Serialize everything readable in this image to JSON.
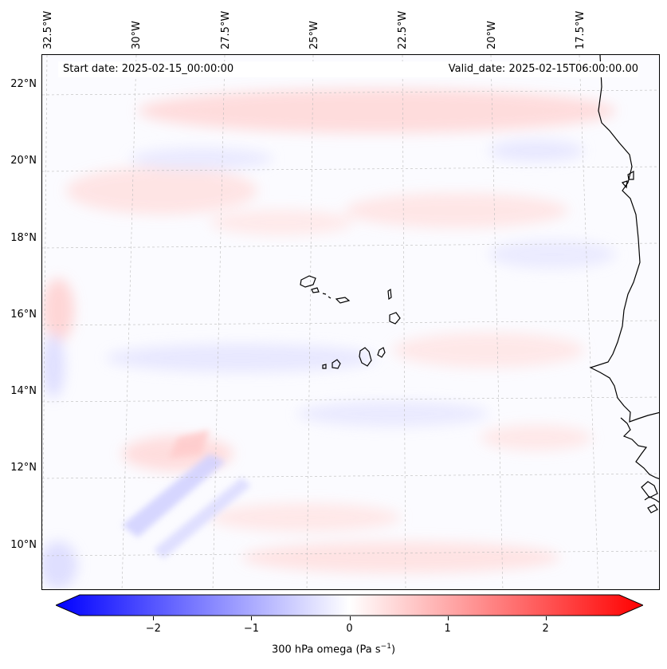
{
  "map": {
    "start_date": "Start date: 2025-02-15_00:00:00",
    "valid_date": "Valid_date: 2025-02-15T06:00:00.00",
    "lon_labels": [
      "32.5°W",
      "30°W",
      "27.5°W",
      "25°W",
      "22.5°W",
      "20°W",
      "17.5°W"
    ],
    "lat_labels": [
      "22°N",
      "20°N",
      "18°N",
      "16°N",
      "14°N",
      "12°N",
      "10°N"
    ],
    "extent": {
      "lon_min": -33.0,
      "lon_max": -15.9,
      "lat_min": 8.9,
      "lat_max": 22.7
    },
    "features": [
      "Cape Verde islands",
      "West African coastline"
    ]
  },
  "colorbar": {
    "title": "300 hPa omega (Pa s",
    "title_sup": "−1",
    "title_end": ")",
    "min": -2.75,
    "max": 2.75,
    "ticks": [
      "−2",
      "−1",
      "0",
      "1",
      "2"
    ],
    "tick_values": [
      -2,
      -1,
      0,
      1,
      2
    ],
    "colormap": "bwr",
    "extend": "both",
    "colors": {
      "negative": "#0000ff",
      "zero": "#ffffff",
      "positive": "#ff0000"
    }
  }
}
